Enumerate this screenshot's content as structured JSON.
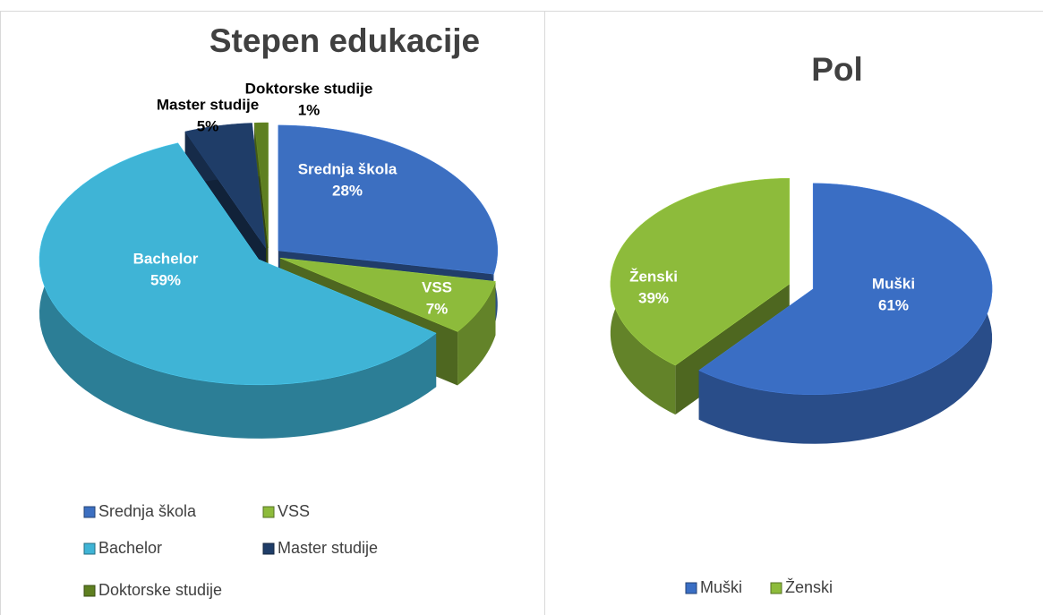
{
  "chart_data": [
    {
      "type": "pie3d",
      "title": "Stepen edukacije",
      "categories": [
        "Srednja škola",
        "VSS",
        "Bachelor",
        "Master studije",
        "Doktorske studije"
      ],
      "values": [
        28,
        7,
        59,
        5,
        1
      ],
      "value_labels": [
        "28%",
        "7%",
        "59%",
        "5%",
        "1%"
      ],
      "colors": [
        "#3c6fc1",
        "#8dbb3b",
        "#3fb4d6",
        "#1f3d68",
        "#5e7f20"
      ]
    },
    {
      "type": "pie3d",
      "title": "Pol",
      "categories": [
        "Muški",
        "Ženski"
      ],
      "values": [
        61,
        39
      ],
      "value_labels": [
        "61%",
        "39%"
      ],
      "colors": [
        "#3a6ec4",
        "#8dbb3b"
      ]
    }
  ]
}
